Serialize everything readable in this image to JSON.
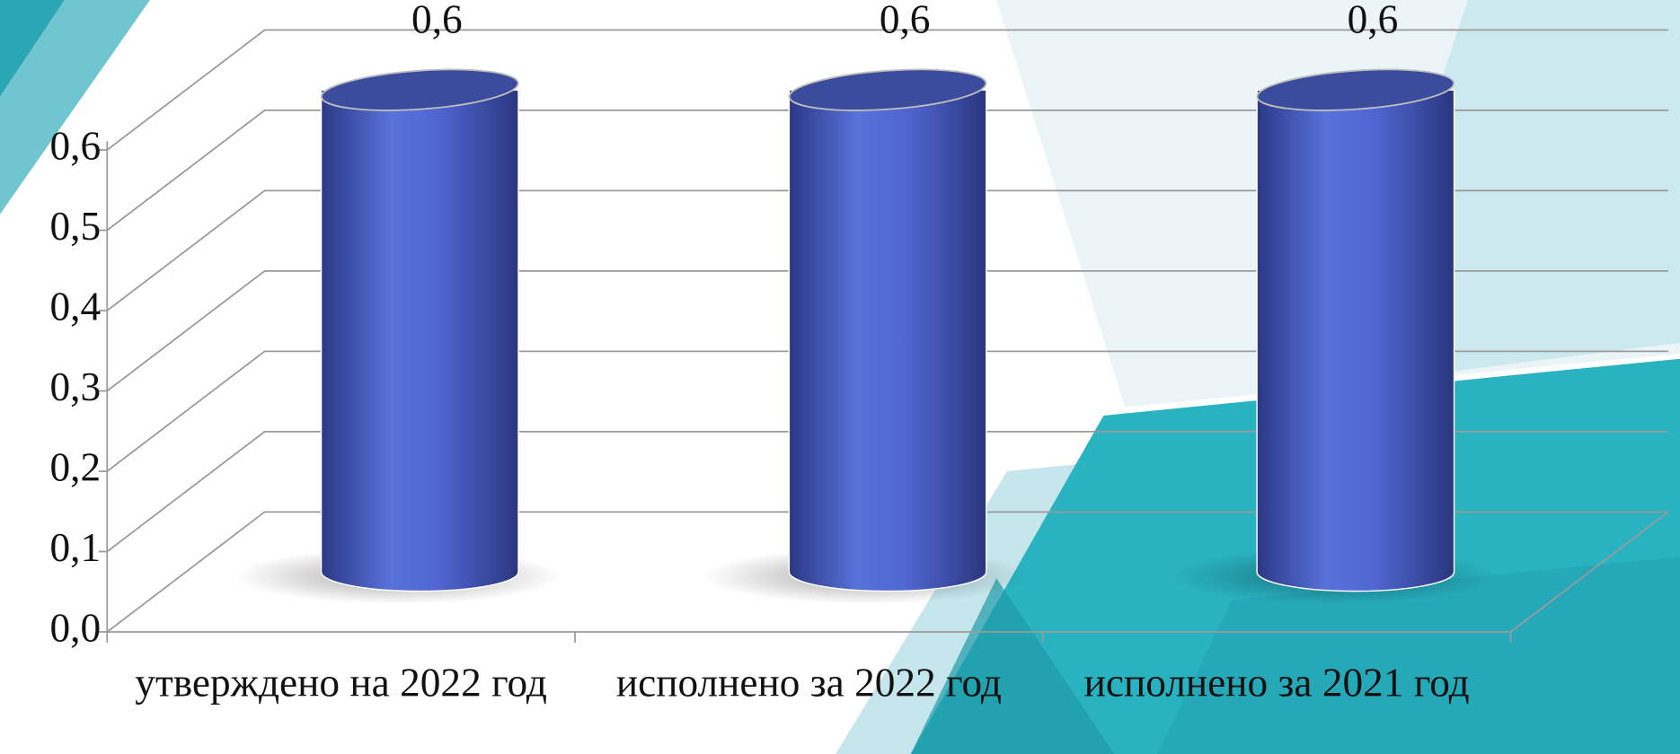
{
  "chart_data": {
    "type": "bar",
    "categories": [
      "утверждено на 2022 год",
      "исполнено за 2022 год",
      "исполнено за 2021 год"
    ],
    "values": [
      0.6,
      0.6,
      0.6
    ],
    "value_labels": [
      "0,6",
      "0,6",
      "0,6"
    ],
    "color": "#4f66d0",
    "ylim": [
      0,
      0.6
    ],
    "yticks": [
      {
        "value": 0,
        "label": "0,0"
      },
      {
        "value": 0.1,
        "label": "0,1"
      },
      {
        "value": 0.2,
        "label": "0,2"
      },
      {
        "value": 0.3,
        "label": "0,3"
      },
      {
        "value": 0.4,
        "label": "0,4"
      },
      {
        "value": 0.5,
        "label": "0,5"
      },
      {
        "value": 0.6,
        "label": "0,6"
      }
    ],
    "grid": true
  }
}
